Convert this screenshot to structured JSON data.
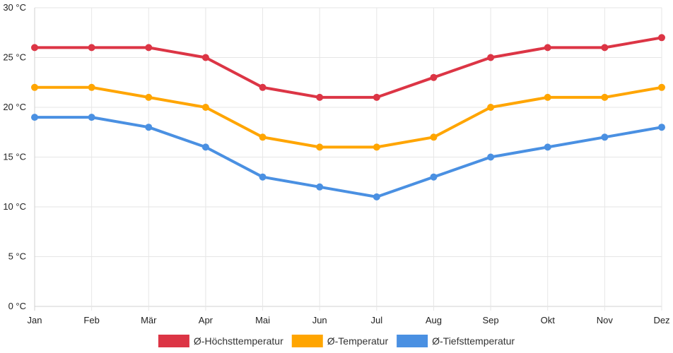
{
  "chart_data": {
    "type": "line",
    "title": "",
    "xlabel": "",
    "ylabel": "",
    "categories": [
      "Jan",
      "Feb",
      "Mär",
      "Apr",
      "Mai",
      "Jun",
      "Jul",
      "Aug",
      "Sep",
      "Okt",
      "Nov",
      "Dez"
    ],
    "ylim": [
      0,
      30
    ],
    "yticks": [
      0,
      5,
      10,
      15,
      20,
      25,
      30
    ],
    "ytick_labels": [
      "0 °C",
      "5 °C",
      "10 °C",
      "15 °C",
      "20 °C",
      "25 °C",
      "30 °C"
    ],
    "grid": true,
    "legend_position": "bottom",
    "series": [
      {
        "name": "Ø-Höchsttemperatur",
        "color": "#dc3545",
        "values": [
          26,
          26,
          26,
          25,
          22,
          21,
          21,
          23,
          25,
          26,
          26,
          27
        ]
      },
      {
        "name": "Ø-Temperatur",
        "color": "#ffa500",
        "values": [
          22,
          22,
          21,
          20,
          17,
          16,
          16,
          17,
          20,
          21,
          21,
          22
        ]
      },
      {
        "name": "Ø-Tiefsttemperatur",
        "color": "#4a90e2",
        "values": [
          19,
          19,
          18,
          16,
          13,
          12,
          11,
          13,
          15,
          16,
          17,
          18
        ]
      }
    ]
  }
}
